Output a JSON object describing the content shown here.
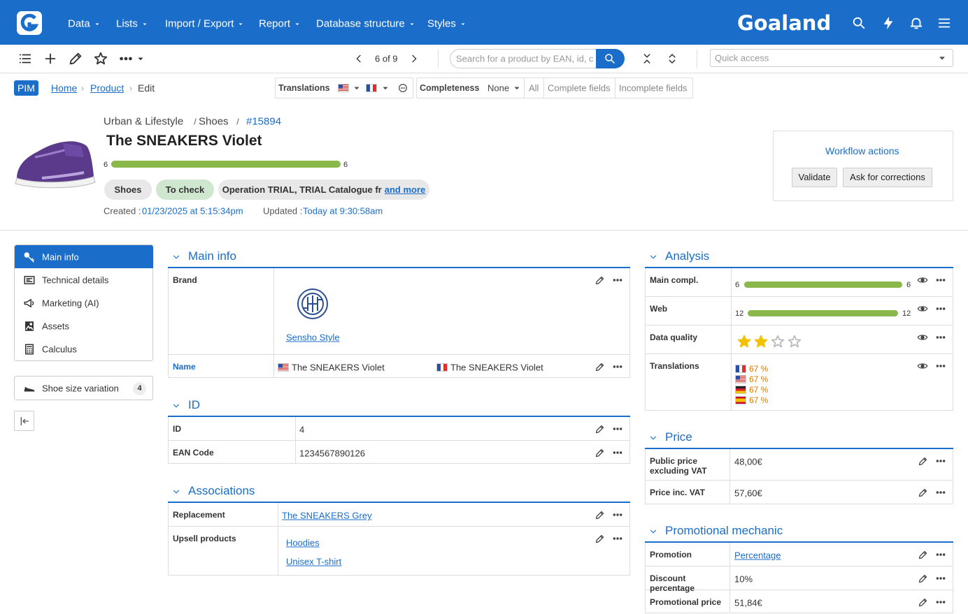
{
  "navbar": {
    "menu": [
      "Data",
      "Lists",
      "Import / Export",
      "Report",
      "Database structure",
      "Styles"
    ],
    "brand": "Goaland"
  },
  "toolbar": {
    "pager": "6 of 9",
    "search_placeholder": "Search for a product by EAN, id, c",
    "quick_access": "Quick access"
  },
  "breadcrumb": {
    "badge": "PIM",
    "items": [
      "Home",
      "Product"
    ],
    "current": "Edit"
  },
  "filters": {
    "translations": "Translations",
    "completeness": "Completeness",
    "completeness_value": "None",
    "options": [
      "All",
      "Complete fields",
      "Incomplete fields"
    ]
  },
  "product": {
    "category_path": [
      "Urban & Lifestyle",
      "Shoes"
    ],
    "id": "#15894",
    "title": "The SNEAKERS Violet",
    "completeness": {
      "value": 6,
      "max": 6
    },
    "tags": [
      "Shoes",
      "To check",
      "Operation TRIAL, TRIAL Catalogue fr"
    ],
    "tags_more": "and more",
    "created_label": "Created :",
    "created": "01/23/2025 at 5:15:34pm",
    "updated_label": "Updated :",
    "updated": "Today at 9:30:58am"
  },
  "workflow": {
    "title": "Workflow actions",
    "buttons": [
      "Validate",
      "Ask for corrections"
    ]
  },
  "sidebar": {
    "items": [
      "Main info",
      "Technical details",
      "Marketing (AI)",
      "Assets",
      "Calculus"
    ],
    "variation": "Shoe size variation",
    "variation_count": 4
  },
  "main_info": {
    "title": "Main info",
    "brand_label": "Brand",
    "brand": "Sensho Style",
    "name_label": "Name",
    "names": [
      "The SNEAKERS Violet",
      "The SNEAKERS Violet"
    ]
  },
  "id_section": {
    "title": "ID",
    "rows": [
      [
        "ID",
        "4"
      ],
      [
        "EAN Code",
        "1234567890126"
      ]
    ]
  },
  "associations": {
    "title": "Associations",
    "rows": [
      {
        "label": "Replacement",
        "links": [
          "The SNEAKERS Grey"
        ]
      },
      {
        "label": "Upsell products",
        "links": [
          "Hoodies",
          "Unisex T-shirt"
        ]
      }
    ]
  },
  "analysis": {
    "title": "Analysis",
    "main_compl": {
      "label": "Main compl.",
      "value": 6,
      "max": 6
    },
    "web": {
      "label": "Web",
      "value": 12,
      "max": 12
    },
    "data_quality": {
      "label": "Data quality",
      "rating": 2,
      "max": 4
    },
    "translations": {
      "label": "Translations",
      "values": [
        "67 %",
        "67 %",
        "67 %",
        "67 %"
      ]
    }
  },
  "price": {
    "title": "Price",
    "rows": [
      [
        "Public price excluding VAT",
        "48,00€"
      ],
      [
        "Price inc. VAT",
        "57,60€"
      ]
    ]
  },
  "promo": {
    "title": "Promotional mechanic",
    "rows": [
      [
        "Promotion",
        "Percentage"
      ],
      [
        "Discount percentage",
        "10%"
      ],
      [
        "Promotional price",
        "51,84€"
      ]
    ]
  }
}
